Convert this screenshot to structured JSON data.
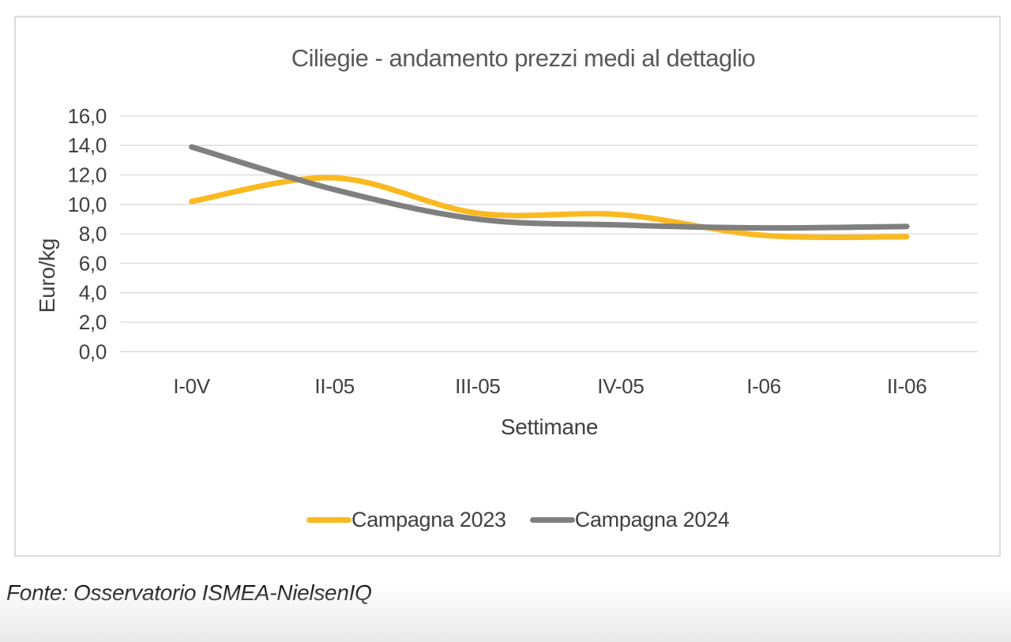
{
  "page": {
    "source_note": "Fonte: Osservatorio ISMEA-NielsenIQ"
  },
  "chart_data": {
    "type": "line",
    "title": "Ciliegie - andamento prezzi medi al dettaglio",
    "xlabel": "Settimane",
    "ylabel": "Euro/kg",
    "categories": [
      "I-0V",
      "II-05",
      "III-05",
      "IV-05",
      "I-06",
      "II-06"
    ],
    "series": [
      {
        "name": "Campagna 2023",
        "color": "#FBB921",
        "values": [
          10.2,
          11.8,
          9.4,
          9.3,
          7.9,
          7.8
        ]
      },
      {
        "name": "Campagna 2024",
        "color": "#7F7F7F",
        "values": [
          13.9,
          11.0,
          9.0,
          8.6,
          8.4,
          8.5
        ]
      }
    ],
    "ylim": [
      0,
      16
    ],
    "ytick_step": 2,
    "ytick_labels": [
      "0,0",
      "2,0",
      "4,0",
      "6,0",
      "8,0",
      "10,0",
      "12,0",
      "14,0",
      "16,0"
    ],
    "grid": true,
    "smooth": true,
    "legend_position": "bottom"
  },
  "colors": {
    "gridline": "#D9D9D9",
    "frame_border": "#DBDBDB",
    "tick_text": "#404040",
    "title_text": "#595959"
  }
}
